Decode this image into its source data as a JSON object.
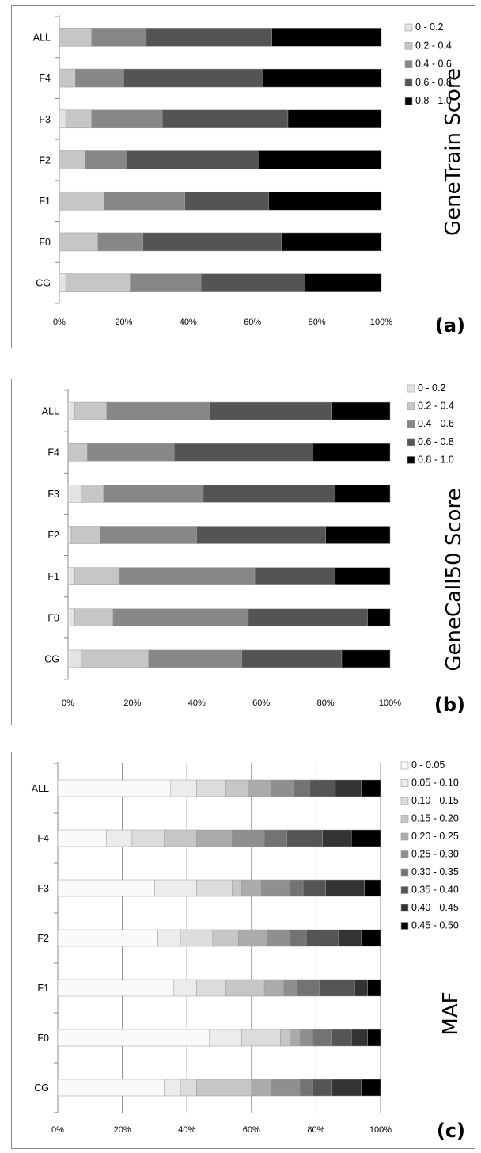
{
  "panels": [
    {
      "letter": "(a)",
      "axis_title": "GeneTrain Score",
      "chart_data": {
        "type": "bar",
        "orientation": "horizontal",
        "stacked": "percent",
        "categories": [
          "ALL",
          "F4",
          "F3",
          "F2",
          "F1",
          "F0",
          "CG"
        ],
        "xlim": [
          0,
          100
        ],
        "x_ticks": [
          "0%",
          "20%",
          "40%",
          "60%",
          "80%",
          "100%"
        ],
        "grid": false,
        "legend_position": "right",
        "series": [
          {
            "name": "0 - 0.2",
            "color": "#e4e4e4",
            "values": [
              0,
              0,
              2,
              0,
              0,
              0,
              2
            ]
          },
          {
            "name": "0.2 - 0.4",
            "color": "#c6c6c6",
            "values": [
              10,
              5,
              8,
              8,
              14,
              12,
              20
            ]
          },
          {
            "name": "0.4 - 0.6",
            "color": "#878787",
            "values": [
              17,
              15,
              22,
              13,
              25,
              14,
              22
            ]
          },
          {
            "name": "0.6 - 0.8",
            "color": "#545454",
            "values": [
              39,
              43,
              39,
              41,
              26,
              43,
              32
            ]
          },
          {
            "name": "0.8 - 1.0",
            "color": "#000000",
            "values": [
              34,
              37,
              29,
              38,
              35,
              31,
              24
            ]
          }
        ]
      }
    },
    {
      "letter": "(b)",
      "axis_title": "GeneCall50 Score",
      "chart_data": {
        "type": "bar",
        "orientation": "horizontal",
        "stacked": "percent",
        "categories": [
          "ALL",
          "F4",
          "F3",
          "F2",
          "F1",
          "F0",
          "CG"
        ],
        "xlim": [
          0,
          100
        ],
        "x_ticks": [
          "0%",
          "20%",
          "40%",
          "60%",
          "80%",
          "100%"
        ],
        "grid": false,
        "legend_position": "right",
        "series": [
          {
            "name": "0 - 0.2",
            "color": "#e4e4e4",
            "values": [
              2,
              0,
              4,
              1,
              2,
              2,
              4
            ]
          },
          {
            "name": "0.2 - 0.4",
            "color": "#c6c6c6",
            "values": [
              10,
              6,
              7,
              9,
              14,
              12,
              21
            ]
          },
          {
            "name": "0.4 - 0.6",
            "color": "#878787",
            "values": [
              32,
              27,
              31,
              30,
              42,
              42,
              29
            ]
          },
          {
            "name": "0.6 - 0.8",
            "color": "#545454",
            "values": [
              38,
              43,
              41,
              40,
              25,
              37,
              31
            ]
          },
          {
            "name": "0.8 - 1.0",
            "color": "#000000",
            "values": [
              18,
              24,
              17,
              20,
              17,
              7,
              15
            ]
          }
        ]
      }
    },
    {
      "letter": "(c)",
      "axis_title": "MAF",
      "chart_data": {
        "type": "bar",
        "orientation": "horizontal",
        "stacked": "percent",
        "categories": [
          "ALL",
          "F4",
          "F3",
          "F2",
          "F1",
          "F0",
          "CG"
        ],
        "xlim": [
          0,
          100
        ],
        "x_ticks": [
          "0%",
          "20%",
          "40%",
          "60%",
          "80%",
          "100%"
        ],
        "grid": true,
        "legend_position": "right",
        "series": [
          {
            "name": "0 - 0.05",
            "color": "#fafafa",
            "values": [
              35,
              15,
              30,
              31,
              36,
              47,
              33
            ]
          },
          {
            "name": "0.05 - 0.10",
            "color": "#ececec",
            "values": [
              8,
              8,
              13,
              7,
              7,
              10,
              5
            ]
          },
          {
            "name": "0.10 - 0.15",
            "color": "#dcdcdc",
            "values": [
              9,
              10,
              11,
              10,
              9,
              12,
              5
            ]
          },
          {
            "name": "0.15 - 0.20",
            "color": "#c6c6c6",
            "values": [
              7,
              10,
              3,
              8,
              12,
              3,
              17
            ]
          },
          {
            "name": "0.20 - 0.25",
            "color": "#ababab",
            "values": [
              7,
              11,
              6,
              9,
              6,
              3,
              6
            ]
          },
          {
            "name": "0.25 - 0.30",
            "color": "#8f8f8f",
            "values": [
              7,
              10,
              9,
              7,
              4,
              4,
              9
            ]
          },
          {
            "name": "0.30 - 0.35",
            "color": "#737373",
            "values": [
              5,
              7,
              4,
              5,
              7,
              6,
              4
            ]
          },
          {
            "name": "0.35 - 0.40",
            "color": "#555555",
            "values": [
              8,
              11,
              7,
              10,
              11,
              6,
              6
            ]
          },
          {
            "name": "0.40 - 0.45",
            "color": "#333333",
            "values": [
              8,
              9,
              12,
              7,
              4,
              5,
              9
            ]
          },
          {
            "name": "0.45 - 0.50",
            "color": "#000000",
            "values": [
              6,
              9,
              5,
              6,
              4,
              4,
              6
            ]
          }
        ]
      }
    }
  ]
}
